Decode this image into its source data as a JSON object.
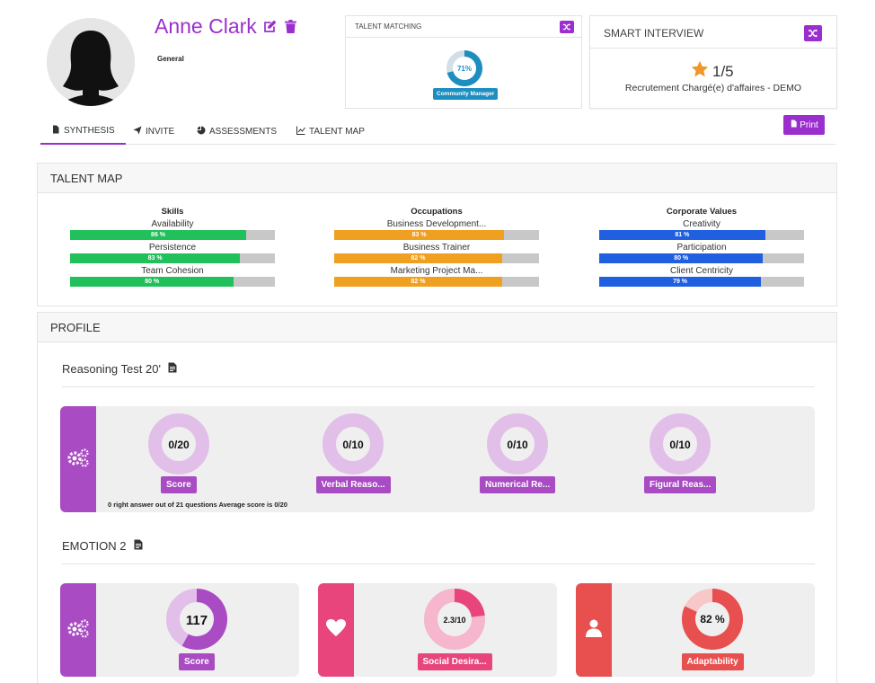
{
  "profile": {
    "name": "Anne Clark",
    "subtitle": "General"
  },
  "talent_matching": {
    "title": "TALENT MATCHING",
    "percent_label": "71%",
    "percent": 71,
    "role": "Community Manager"
  },
  "smart_interview": {
    "title": "SMART INTERVIEW",
    "score": "1/5",
    "label": "Recrutement Chargé(e) d'affaires - DEMO"
  },
  "tabs": [
    {
      "label": "SYNTHESIS",
      "icon": "file-icon"
    },
    {
      "label": "INVITE",
      "icon": "send-icon"
    },
    {
      "label": "ASSESSMENTS",
      "icon": "pie-icon"
    },
    {
      "label": "TALENT MAP",
      "icon": "chart-icon"
    }
  ],
  "print_label": "Print",
  "talent_map": {
    "title": "TALENT MAP",
    "columns": [
      {
        "title": "Skills",
        "color": "#22c05a",
        "items": [
          {
            "label": "Availability",
            "value": 86,
            "pct": "86 %"
          },
          {
            "label": "Persistence",
            "value": 83,
            "pct": "83 %"
          },
          {
            "label": "Team Cohesion",
            "value": 80,
            "pct": "80 %"
          }
        ]
      },
      {
        "title": "Occupations",
        "color": "#f0a020",
        "items": [
          {
            "label": "Business Development...",
            "value": 83,
            "pct": "83 %"
          },
          {
            "label": "Business Trainer",
            "value": 82,
            "pct": "82 %"
          },
          {
            "label": "Marketing Project Ma...",
            "value": 82,
            "pct": "82 %"
          }
        ]
      },
      {
        "title": "Corporate Values",
        "color": "#1f5fe0",
        "items": [
          {
            "label": "Creativity",
            "value": 81,
            "pct": "81 %"
          },
          {
            "label": "Participation",
            "value": 80,
            "pct": "80 %"
          },
          {
            "label": "Client Centricity",
            "value": 79,
            "pct": "79 %"
          }
        ]
      }
    ]
  },
  "profile_section": {
    "title": "PROFILE",
    "reasoning": {
      "title": "Reasoning Test 20'",
      "accent": "#a94bc2",
      "scores": [
        {
          "value": "0/20",
          "label": "Score"
        },
        {
          "value": "0/10",
          "label": "Verbal Reaso..."
        },
        {
          "value": "0/10",
          "label": "Numerical Re..."
        },
        {
          "value": "0/10",
          "label": "Figural Reas..."
        }
      ],
      "note": "0 right answer out of 21 questions Average score is  0/20"
    },
    "emotion": {
      "title": "EMOTION 2",
      "cards": [
        {
          "value": "117",
          "label": "Score",
          "color": "#a94bc2",
          "light": "#e2bfe8",
          "fraction": 0.58,
          "icon": "gears-icon"
        },
        {
          "value": "2.3/10",
          "label": "Social Desira...",
          "color": "#e8457c",
          "light": "#f6b6cd",
          "fraction": 0.23,
          "icon": "heart-icon"
        },
        {
          "value": "82 %",
          "label": "Adaptability",
          "color": "#e84f4f",
          "light": "#f8c7c7",
          "fraction": 0.82,
          "icon": "user-icon"
        }
      ]
    }
  }
}
